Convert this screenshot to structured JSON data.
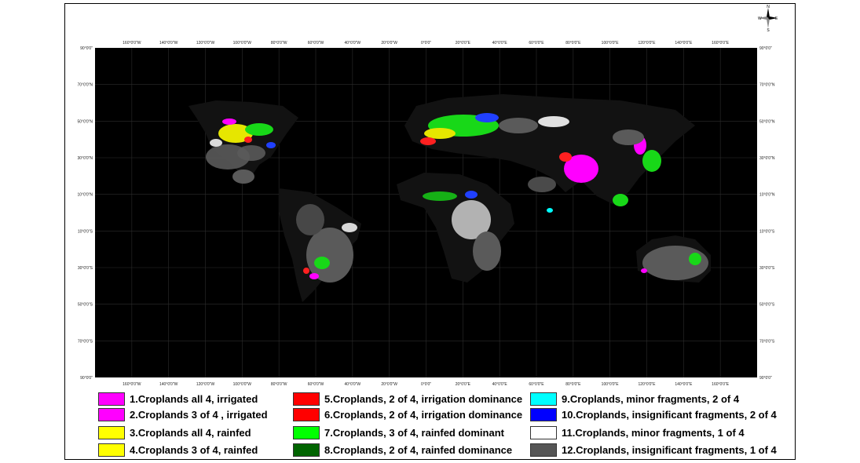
{
  "map": {
    "lon_ticks_top": [
      "160°0'0\"W",
      "140°0'0\"W",
      "120°0'0\"W",
      "100°0'0\"W",
      "80°0'0\"W",
      "60°0'0\"W",
      "40°0'0\"W",
      "20°0'0\"W",
      "0°0'0\"",
      "20°0'0\"E",
      "40°0'0\"E",
      "60°0'0\"E",
      "80°0'0\"E",
      "100°0'0\"E",
      "120°0'0\"E",
      "140°0'0\"E",
      "160°0'0\"E"
    ],
    "lon_ticks_bottom": [
      "160°0'0\"W",
      "140°0'0\"W",
      "120°0'0\"W",
      "100°0'0\"W",
      "80°0'0\"W",
      "60°0'0\"W",
      "40°0'0\"W",
      "20°0'0\"W",
      "0°0'0\"",
      "20°0'0\"E",
      "40°0'0\"E",
      "60°0'0\"E",
      "80°0'0\"E",
      "100°0'0\"E",
      "120°0'0\"E",
      "140°0'0\"E",
      "160°0'0\"E"
    ],
    "lat_ticks": [
      "90°0'0\"",
      "70°0'0\"N",
      "50°0'0\"N",
      "30°0'0\"N",
      "10°0'0\"N",
      "10°0'0\"S",
      "30°0'0\"S",
      "50°0'0\"S",
      "70°0'0\"S",
      "90°0'0\""
    ],
    "north_arrow": {
      "n": "N",
      "s": "S",
      "e": "E",
      "w": "W"
    },
    "colors": {
      "ocean": "#000000",
      "land": "#101010",
      "grid": "#2c2c2c"
    }
  },
  "legend": [
    {
      "label": "1.Croplands all 4, irrigated",
      "color": "#ff00ff"
    },
    {
      "label": "2.Croplands 3 of 4 , irrigated",
      "color": "#ff00ff"
    },
    {
      "label": "3.Croplands all 4, rainfed",
      "color": "#ffff00"
    },
    {
      "label": "4.Croplands 3 of 4,   rainfed",
      "color": "#ffff00"
    },
    {
      "label": "5.Croplands, 2 of 4, irrigation dominance",
      "color": "#ff0000"
    },
    {
      "label": "6.Croplands, 2 of 4, irrigation dominance",
      "color": "#ff0000"
    },
    {
      "label": "7.Croplands, 3 of 4, rainfed dominant",
      "color": "#00ff00"
    },
    {
      "label": "8.Croplands, 2 of 4, rainfed dominance",
      "color": "#006400"
    },
    {
      "label": "9.Croplands, minor fragments,  2 of 4",
      "color": "#00ffff"
    },
    {
      "label": "10.Croplands,  insignificant fragments,  2 of 4",
      "color": "#0000ff"
    },
    {
      "label": "11.Croplands, minor fragments, 1 of 4",
      "color": "#ffffff"
    },
    {
      "label": "12.Croplands,  insignificant fragments,   1 of 4",
      "color": "#555555"
    }
  ]
}
